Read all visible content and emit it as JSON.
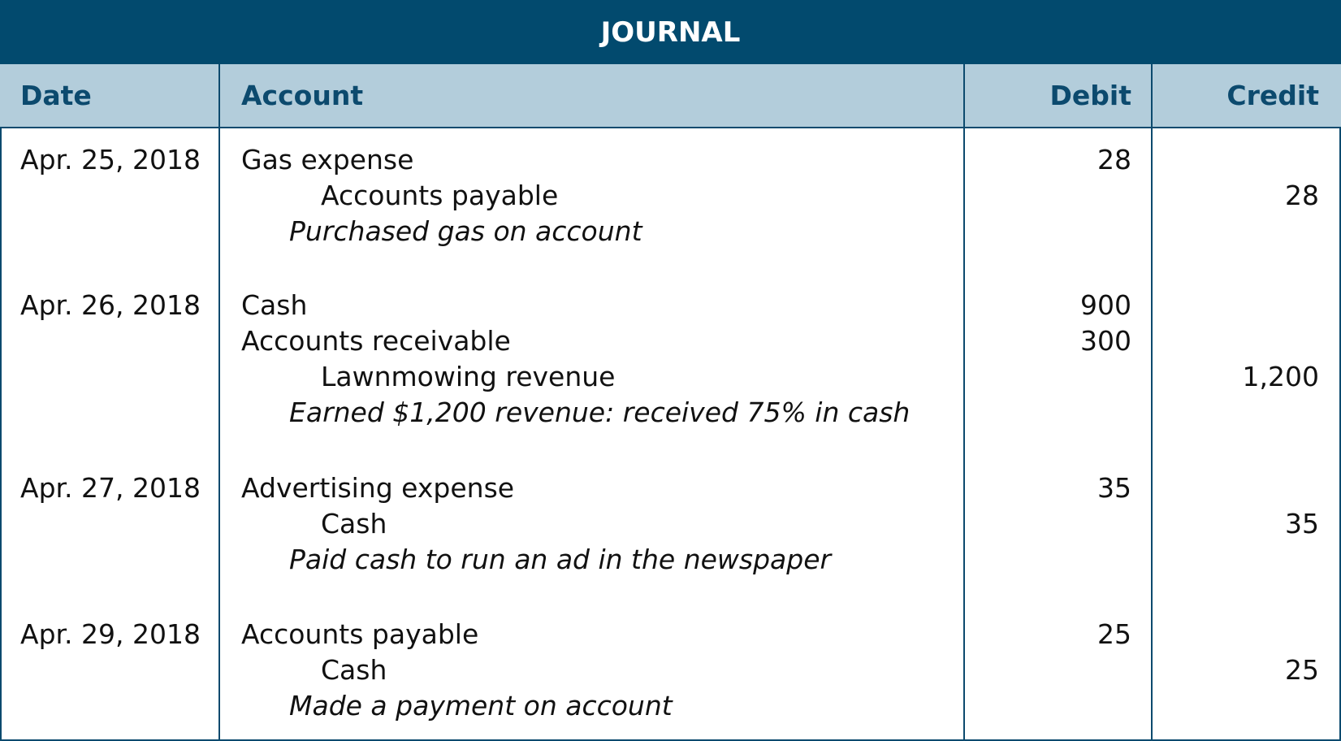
{
  "title": "JOURNAL",
  "columns": {
    "date": "Date",
    "account": "Account",
    "debit": "Debit",
    "credit": "Credit"
  },
  "colors": {
    "header": "#024a6e",
    "subheader": "#b3cddb",
    "header_text": "#0c4a6e"
  },
  "entries": [
    {
      "date": "Apr. 25, 2018",
      "lines": [
        {
          "account": "Gas expense",
          "debit": "28",
          "credit": ""
        },
        {
          "account": "Accounts payable",
          "debit": "",
          "credit": "28",
          "indent": true
        }
      ],
      "memo": "Purchased gas on account"
    },
    {
      "date": "Apr. 26, 2018",
      "lines": [
        {
          "account": "Cash",
          "debit": "900",
          "credit": ""
        },
        {
          "account": "Accounts receivable",
          "debit": "300",
          "credit": ""
        },
        {
          "account": "Lawnmowing revenue",
          "debit": "",
          "credit": "1,200",
          "indent": true
        }
      ],
      "memo": "Earned $1,200 revenue: received 75% in cash"
    },
    {
      "date": "Apr. 27, 2018",
      "lines": [
        {
          "account": "Advertising expense",
          "debit": "35",
          "credit": ""
        },
        {
          "account": "Cash",
          "debit": "",
          "credit": "35",
          "indent": true
        }
      ],
      "memo": "Paid cash to run an ad in the newspaper"
    },
    {
      "date": "Apr. 29, 2018",
      "lines": [
        {
          "account": "Accounts payable",
          "debit": "25",
          "credit": ""
        },
        {
          "account": "Cash",
          "debit": "",
          "credit": "25",
          "indent": true
        }
      ],
      "memo": "Made a payment on account"
    }
  ]
}
